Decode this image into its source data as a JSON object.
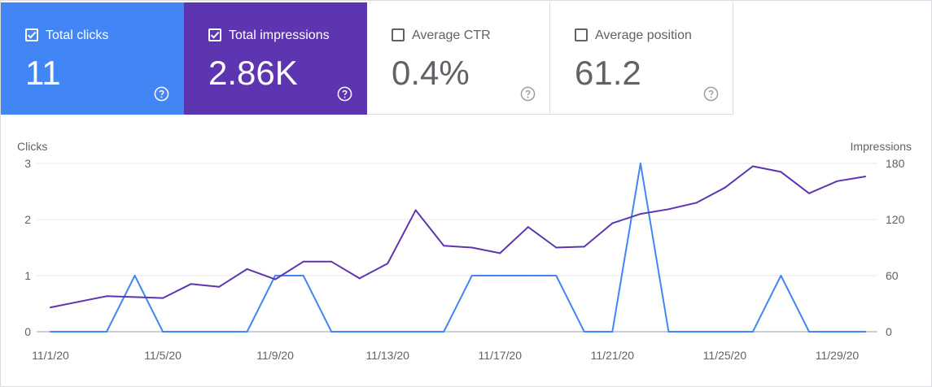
{
  "metrics": [
    {
      "label": "Total clicks",
      "value": "11",
      "checked": true
    },
    {
      "label": "Total impressions",
      "value": "2.86K",
      "checked": true
    },
    {
      "label": "Average CTR",
      "value": "0.4%",
      "checked": false
    },
    {
      "label": "Average position",
      "value": "61.2",
      "checked": false
    }
  ],
  "colors": {
    "clicks": "#4285f4",
    "impressions": "#5e35b1",
    "grid": "#e8eaed",
    "baseline": "#9aa0a6"
  },
  "icons": {
    "checkbox": "checkbox-icon",
    "help": "help-circle-icon"
  },
  "chart_data": {
    "type": "line",
    "left_axis_title": "Clicks",
    "right_axis_title": "Impressions",
    "left_ylim": [
      0,
      3
    ],
    "right_ylim": [
      0,
      180
    ],
    "left_ticks": [
      "0",
      "1",
      "2",
      "3"
    ],
    "right_ticks": [
      "0",
      "60",
      "120",
      "180"
    ],
    "x_ticks": [
      "11/1/20",
      "11/5/20",
      "11/9/20",
      "11/13/20",
      "11/17/20",
      "11/21/20",
      "11/25/20",
      "11/29/20"
    ],
    "x": [
      "11/1/20",
      "11/2/20",
      "11/3/20",
      "11/4/20",
      "11/5/20",
      "11/6/20",
      "11/7/20",
      "11/8/20",
      "11/9/20",
      "11/10/20",
      "11/11/20",
      "11/12/20",
      "11/13/20",
      "11/14/20",
      "11/15/20",
      "11/16/20",
      "11/17/20",
      "11/18/20",
      "11/19/20",
      "11/20/20",
      "11/21/20",
      "11/22/20",
      "11/23/20",
      "11/24/20",
      "11/25/20",
      "11/26/20",
      "11/27/20",
      "11/28/20",
      "11/29/20",
      "11/30/20"
    ],
    "grid": true,
    "series": [
      {
        "name": "Clicks",
        "axis": "left",
        "color": "#4285f4",
        "values": [
          0,
          0,
          0,
          1,
          0,
          0,
          0,
          0,
          1,
          1,
          0,
          0,
          0,
          0,
          0,
          1,
          1,
          1,
          1,
          0,
          0,
          3,
          0,
          0,
          0,
          0,
          1,
          0,
          0,
          0
        ]
      },
      {
        "name": "Impressions",
        "axis": "right",
        "color": "#5e35b1",
        "values": [
          26,
          32,
          38,
          37,
          36,
          51,
          48,
          67,
          56,
          75,
          75,
          57,
          73,
          130,
          92,
          90,
          84,
          112,
          90,
          91,
          116,
          126,
          131,
          138,
          154,
          177,
          171,
          148,
          161,
          166
        ]
      }
    ]
  }
}
